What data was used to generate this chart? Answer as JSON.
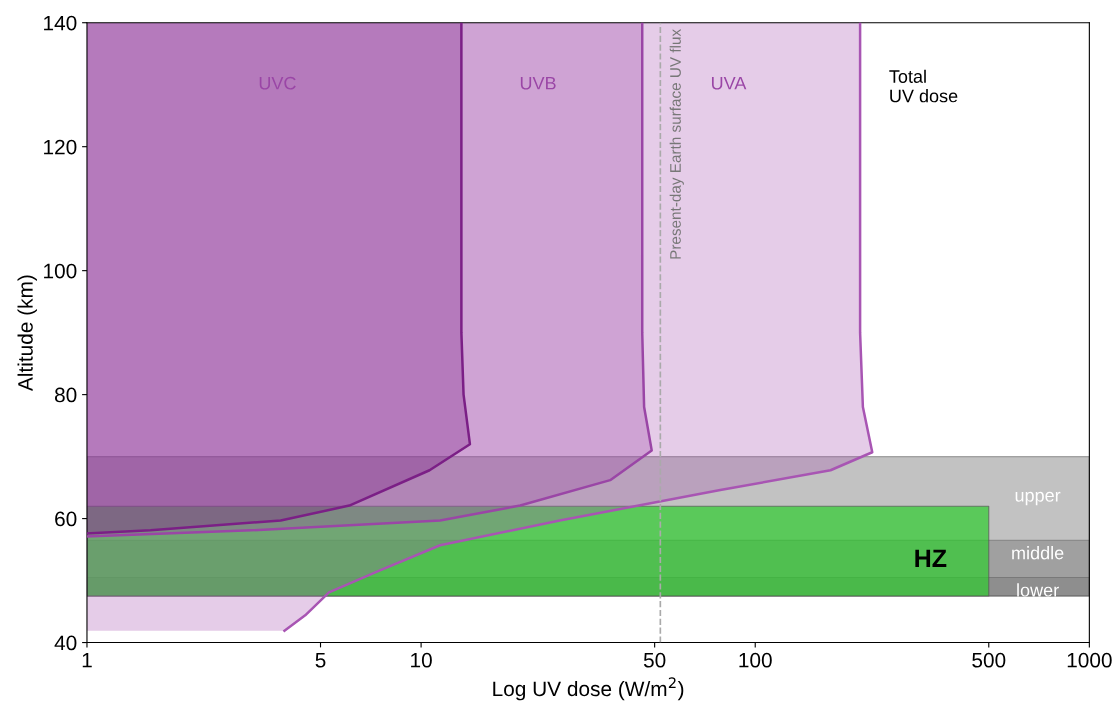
{
  "chart_data": {
    "type": "area",
    "orientation": "horizontal",
    "xlabel": "Log UV dose (W/m$^{2}$)",
    "ylabel": "Altitude (km)",
    "log": "x",
    "xlim": [
      1,
      1000
    ],
    "xticks": [
      1,
      5,
      10,
      50,
      100,
      500,
      1000
    ],
    "ylim": [
      40,
      140
    ],
    "yticks": [
      40,
      60,
      80,
      100,
      120,
      140
    ],
    "grid": false,
    "series": [
      {
        "color": "#a855b3",
        "values": [
          206,
          206,
          210,
          224,
          168,
          78.6,
          26,
          11.4,
          7.5,
          5.3,
          4.5,
          3.9
        ],
        "x": [
          140,
          90,
          78,
          70.7,
          67.8,
          64.6,
          59.7,
          55.7,
          51.6,
          48.1,
          44.4,
          41.9
        ]
      },
      {
        "color": "#9a46a6",
        "values": [
          45.9,
          45.9,
          46.5,
          49,
          36.8,
          19.8,
          11.4,
          3.1,
          1
        ],
        "x": [
          140,
          90,
          78,
          71,
          66.2,
          62.1,
          59.7,
          58.1,
          57.1
        ]
      },
      {
        "color": "#7b1f86",
        "values": [
          13.2,
          13.2,
          13.4,
          14,
          10.6,
          6.1,
          3.8,
          1.55,
          1
        ],
        "x": [
          140,
          90,
          80,
          72,
          67.8,
          62.1,
          59.7,
          58.1,
          57.6
        ]
      }
    ],
    "bands": [
      {
        "axis": "y",
        "from": 47.5,
        "to": 70,
        "label": "upper",
        "color": "#777777"
      },
      {
        "axis": "y",
        "from": 47.5,
        "to": 56.5,
        "label": "middle",
        "color": "#777777"
      },
      {
        "axis": "y",
        "from": 47.5,
        "to": 50.5,
        "label": "lower",
        "color": "#777777"
      },
      {
        "axis": "y",
        "from": 47.5,
        "to": 62,
        "label": "HZ",
        "color": "#2ecc2e"
      }
    ],
    "ref_lines": [
      {
        "axis": "x",
        "value": 52,
        "label": "Present-day Earth surface UV flux",
        "color": "#aaaaaa",
        "line_style": "dashed"
      }
    ],
    "annotations": [
      "UVC",
      "UVB",
      "UVA",
      "Total\nUV dose"
    ]
  }
}
